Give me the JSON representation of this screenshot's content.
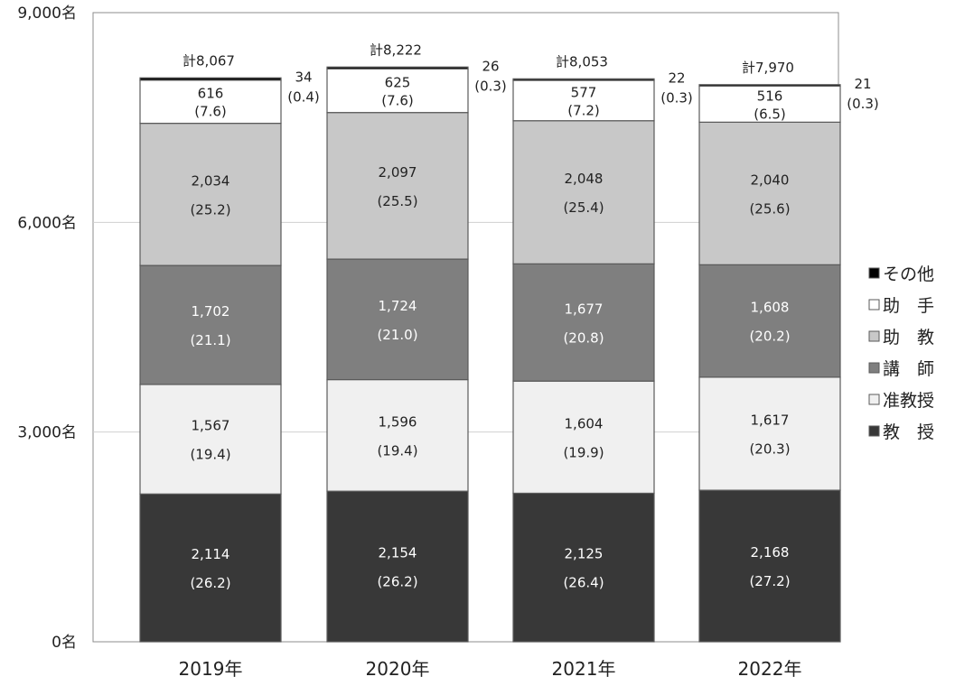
{
  "chart_data": {
    "type": "bar",
    "stacked": true,
    "categories": [
      "2019年",
      "2020年",
      "2021年",
      "2022年"
    ],
    "ylim": [
      0,
      9000
    ],
    "yticks": [
      0,
      3000,
      6000,
      9000
    ],
    "ytick_labels": [
      "0名",
      "3,000名",
      "6,000名",
      "9,000名"
    ],
    "grid": true,
    "legend_position": "right",
    "series": [
      {
        "name": "教　授",
        "color": "#383838",
        "text_color": "#ffffff",
        "values": [
          2114,
          2154,
          2125,
          2168
        ],
        "value_labels": [
          "2,114",
          "2,154",
          "2,125",
          "2,168"
        ],
        "percent_labels": [
          "(26.2)",
          "(26.2)",
          "(26.4)",
          "(27.2)"
        ]
      },
      {
        "name": "准教授",
        "color": "#f0f0f0",
        "text_color": "#222222",
        "values": [
          1567,
          1596,
          1604,
          1617
        ],
        "value_labels": [
          "1,567",
          "1,596",
          "1,604",
          "1,617"
        ],
        "percent_labels": [
          "(19.4)",
          "(19.4)",
          "(19.9)",
          "(20.3)"
        ]
      },
      {
        "name": "講　師",
        "color": "#7f7f7f",
        "text_color": "#ffffff",
        "values": [
          1702,
          1724,
          1677,
          1608
        ],
        "value_labels": [
          "1,702",
          "1,724",
          "1,677",
          "1,608"
        ],
        "percent_labels": [
          "(21.1)",
          "(21.0)",
          "(20.8)",
          "(20.2)"
        ]
      },
      {
        "name": "助　教",
        "color": "#c8c8c8",
        "text_color": "#222222",
        "values": [
          2034,
          2097,
          2048,
          2040
        ],
        "value_labels": [
          "2,034",
          "2,097",
          "2,048",
          "2,040"
        ],
        "percent_labels": [
          "(25.2)",
          "(25.5)",
          "(25.4)",
          "(25.6)"
        ]
      },
      {
        "name": "助　手",
        "color": "#ffffff",
        "text_color": "#222222",
        "values": [
          616,
          625,
          577,
          516
        ],
        "value_labels": [
          "616",
          "625",
          "577",
          "516"
        ],
        "percent_labels": [
          "(7.6)",
          "(7.6)",
          "(7.2)",
          "(6.5)"
        ]
      },
      {
        "name": "その他",
        "color": "#000000",
        "text_color": "#222222",
        "values": [
          34,
          26,
          22,
          21
        ],
        "value_labels": [
          "34",
          "26",
          "22",
          "21"
        ],
        "percent_labels": [
          "(0.4)",
          "(0.3)",
          "(0.3)",
          "(0.3)"
        ]
      }
    ],
    "totals": [
      8067,
      8222,
      8053,
      7970
    ],
    "total_labels": [
      "計8,067",
      "計8,222",
      "計8,053",
      "計7,970"
    ],
    "legend_order": [
      "その他",
      "助　手",
      "助　教",
      "講　師",
      "准教授",
      "教　授"
    ]
  }
}
